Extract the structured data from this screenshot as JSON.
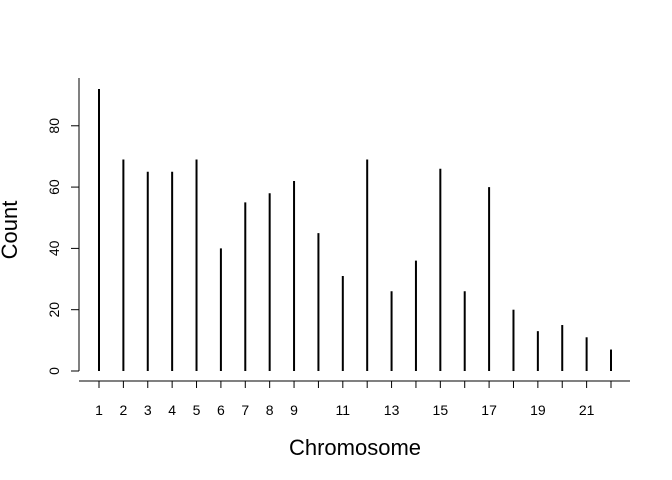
{
  "chart_data": {
    "type": "bar",
    "style": "vertical-lines",
    "title": "",
    "xlabel": "Chromosome",
    "ylabel": "Count",
    "categories": [
      1,
      2,
      3,
      4,
      5,
      6,
      7,
      8,
      9,
      10,
      11,
      12,
      13,
      14,
      15,
      16,
      17,
      18,
      19,
      20,
      21,
      22
    ],
    "x_tick_labels": [
      "1",
      "2",
      "3",
      "4",
      "5",
      "6",
      "7",
      "8",
      "9",
      "",
      "11",
      "",
      "13",
      "",
      "15",
      "",
      "17",
      "",
      "19",
      "",
      "21",
      ""
    ],
    "values": [
      92,
      69,
      65,
      65,
      69,
      40,
      55,
      58,
      62,
      45,
      31,
      69,
      26,
      36,
      66,
      26,
      60,
      20,
      13,
      15,
      11,
      7
    ],
    "y_ticks": [
      0,
      20,
      40,
      60,
      80
    ],
    "ylim": [
      0,
      92
    ],
    "xlim": [
      1,
      22
    ],
    "grid": false,
    "legend": "none",
    "color": "#000000"
  }
}
